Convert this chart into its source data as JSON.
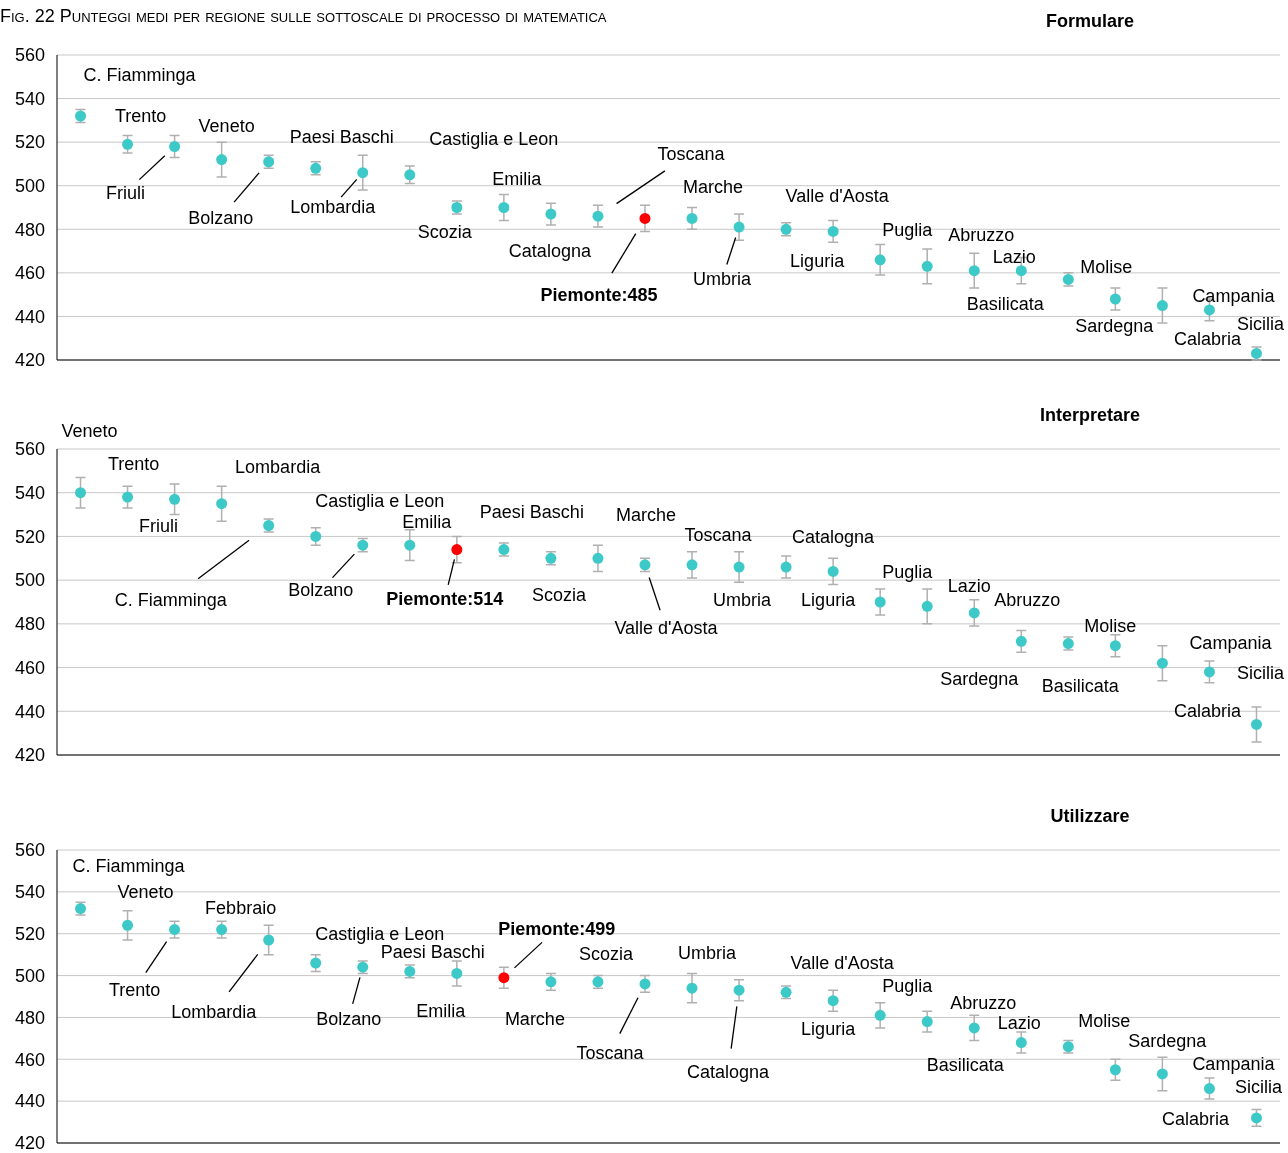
{
  "chart_data": [
    {
      "type": "scatter",
      "title": "Formulare",
      "subtitle": "Fig. 22 Punteggi medi per regione sulle sottoscale di processo di matematica",
      "annotations": [
        "C. Fiamminga",
        "Trento",
        "Friuli",
        "Veneto",
        "Bolzano",
        "Paesi Baschi",
        "Lombardia",
        "Castiglia e Leon",
        "Scozia",
        "Emilia",
        "Catalogna",
        "Toscana",
        "Piemonte:485",
        "Marche",
        "Umbria",
        "Valle d'Aosta",
        "Liguria",
        "Puglia",
        "Abruzzo",
        "Basilicata",
        "Lazio",
        "Molise",
        "Sardegna",
        "Campania",
        "Sicilia",
        "Calabria"
      ],
      "categories": [
        null,
        null,
        null,
        null,
        null,
        null,
        null,
        null,
        null,
        null,
        null,
        null,
        null,
        null,
        null,
        null,
        null,
        null,
        null,
        null,
        null,
        null,
        null,
        null,
        null,
        null
      ],
      "values": [
        532,
        519,
        518,
        512,
        511,
        508,
        506,
        505,
        490,
        490,
        487,
        486,
        485,
        485,
        481,
        480,
        479,
        466,
        463,
        461,
        461,
        457,
        448,
        445,
        443,
        423
      ],
      "errors": [
        3,
        4,
        5,
        8,
        3,
        3,
        8,
        4,
        3,
        6,
        5,
        5,
        6,
        5,
        6,
        3,
        5,
        7,
        8,
        8,
        6,
        3,
        5,
        8,
        5,
        3
      ],
      "colors": [
        "#3ec9c9",
        "#3ec9c9",
        "#3ec9c9",
        "#3ec9c9",
        "#3ec9c9",
        "#3ec9c9",
        "#3ec9c9",
        "#3ec9c9",
        "#3ec9c9",
        "#3ec9c9",
        "#3ec9c9",
        "#3ec9c9",
        "#ff0000",
        "#3ec9c9",
        "#3ec9c9",
        "#3ec9c9",
        "#3ec9c9",
        "#3ec9c9",
        "#3ec9c9",
        "#3ec9c9",
        "#3ec9c9",
        "#3ec9c9",
        "#3ec9c9",
        "#3ec9c9",
        "#3ec9c9",
        "#3ec9c9"
      ],
      "ylim": [
        420,
        560
      ],
      "yticks": [
        420,
        440,
        460,
        480,
        500,
        520,
        540,
        560
      ],
      "grid": "y",
      "marker": "circle"
    },
    {
      "type": "scatter",
      "title": "Interpretare",
      "annotations": [
        "Veneto",
        "Trento",
        "Friuli",
        "Lombardia",
        "C. Fiamminga",
        "Castiglia e Leon",
        "Bolzano",
        "Emilia",
        "Piemonte:514",
        "Paesi Baschi",
        "Scozia",
        "Marche",
        "Valle d'Aosta",
        "Toscana",
        "Umbria",
        "Catalogna",
        "Liguria",
        "Puglia",
        "Lazio",
        "Abruzzo",
        "Sardegna",
        "Basilicata",
        "Molise",
        "Campania",
        "Sicilia",
        "Calabria"
      ],
      "categories": [
        null,
        null,
        null,
        null,
        null,
        null,
        null,
        null,
        null,
        null,
        null,
        null,
        null,
        null,
        null,
        null,
        null,
        null,
        null,
        null,
        null,
        null,
        null,
        null,
        null,
        null
      ],
      "values": [
        540,
        538,
        537,
        535,
        525,
        520,
        516,
        516,
        514,
        514,
        510,
        510,
        507,
        507,
        506,
        506,
        504,
        490,
        488,
        485,
        472,
        471,
        470,
        462,
        458,
        434
      ],
      "errors": [
        7,
        5,
        7,
        8,
        3,
        4,
        3,
        7,
        6,
        3,
        3,
        6,
        3,
        6,
        7,
        5,
        6,
        6,
        8,
        6,
        5,
        3,
        5,
        8,
        5,
        8
      ],
      "colors": [
        "#3ec9c9",
        "#3ec9c9",
        "#3ec9c9",
        "#3ec9c9",
        "#3ec9c9",
        "#3ec9c9",
        "#3ec9c9",
        "#3ec9c9",
        "#ff0000",
        "#3ec9c9",
        "#3ec9c9",
        "#3ec9c9",
        "#3ec9c9",
        "#3ec9c9",
        "#3ec9c9",
        "#3ec9c9",
        "#3ec9c9",
        "#3ec9c9",
        "#3ec9c9",
        "#3ec9c9",
        "#3ec9c9",
        "#3ec9c9",
        "#3ec9c9",
        "#3ec9c9",
        "#3ec9c9",
        "#3ec9c9"
      ],
      "ylim": [
        420,
        560
      ],
      "yticks": [
        420,
        440,
        460,
        480,
        500,
        520,
        540,
        560
      ],
      "grid": "y",
      "marker": "circle"
    },
    {
      "type": "scatter",
      "title": "Utilizzare",
      "annotations": [
        "C. Fiamminga",
        "Veneto",
        "Trento",
        "Febbraio",
        "Lombardia",
        "Castiglia e Leon",
        "Bolzano",
        "Paesi Baschi",
        "Emilia",
        "Piemonte:499",
        "Marche",
        "Scozia",
        "Toscana",
        "Umbria",
        "Catalogna",
        "Valle d'Aosta",
        "Liguria",
        "Puglia",
        "Basilicata",
        "Abruzzo",
        "Lazio",
        "Molise",
        "Sardegna",
        "Campania",
        "Sicilia",
        "Calabria"
      ],
      "categories": [
        null,
        null,
        null,
        null,
        null,
        null,
        null,
        null,
        null,
        null,
        null,
        null,
        null,
        null,
        null,
        null,
        null,
        null,
        null,
        null,
        null,
        null,
        null,
        null,
        null,
        null
      ],
      "values": [
        532,
        524,
        522,
        522,
        517,
        506,
        504,
        502,
        501,
        499,
        497,
        497,
        496,
        494,
        493,
        492,
        488,
        481,
        478,
        475,
        468,
        466,
        455,
        453,
        446,
        432
      ],
      "errors": [
        3,
        7,
        4,
        4,
        7,
        4,
        3,
        3,
        6,
        5,
        4,
        3,
        4,
        7,
        5,
        3,
        5,
        6,
        5,
        6,
        5,
        3,
        5,
        8,
        5,
        4
      ],
      "colors": [
        "#3ec9c9",
        "#3ec9c9",
        "#3ec9c9",
        "#3ec9c9",
        "#3ec9c9",
        "#3ec9c9",
        "#3ec9c9",
        "#3ec9c9",
        "#3ec9c9",
        "#ff0000",
        "#3ec9c9",
        "#3ec9c9",
        "#3ec9c9",
        "#3ec9c9",
        "#3ec9c9",
        "#3ec9c9",
        "#3ec9c9",
        "#3ec9c9",
        "#3ec9c9",
        "#3ec9c9",
        "#3ec9c9",
        "#3ec9c9",
        "#3ec9c9",
        "#3ec9c9",
        "#3ec9c9",
        "#3ec9c9"
      ],
      "ylim": [
        420,
        560
      ],
      "yticks": [
        420,
        440,
        460,
        480,
        500,
        520,
        540,
        560
      ],
      "grid": "y",
      "marker": "circle"
    }
  ]
}
